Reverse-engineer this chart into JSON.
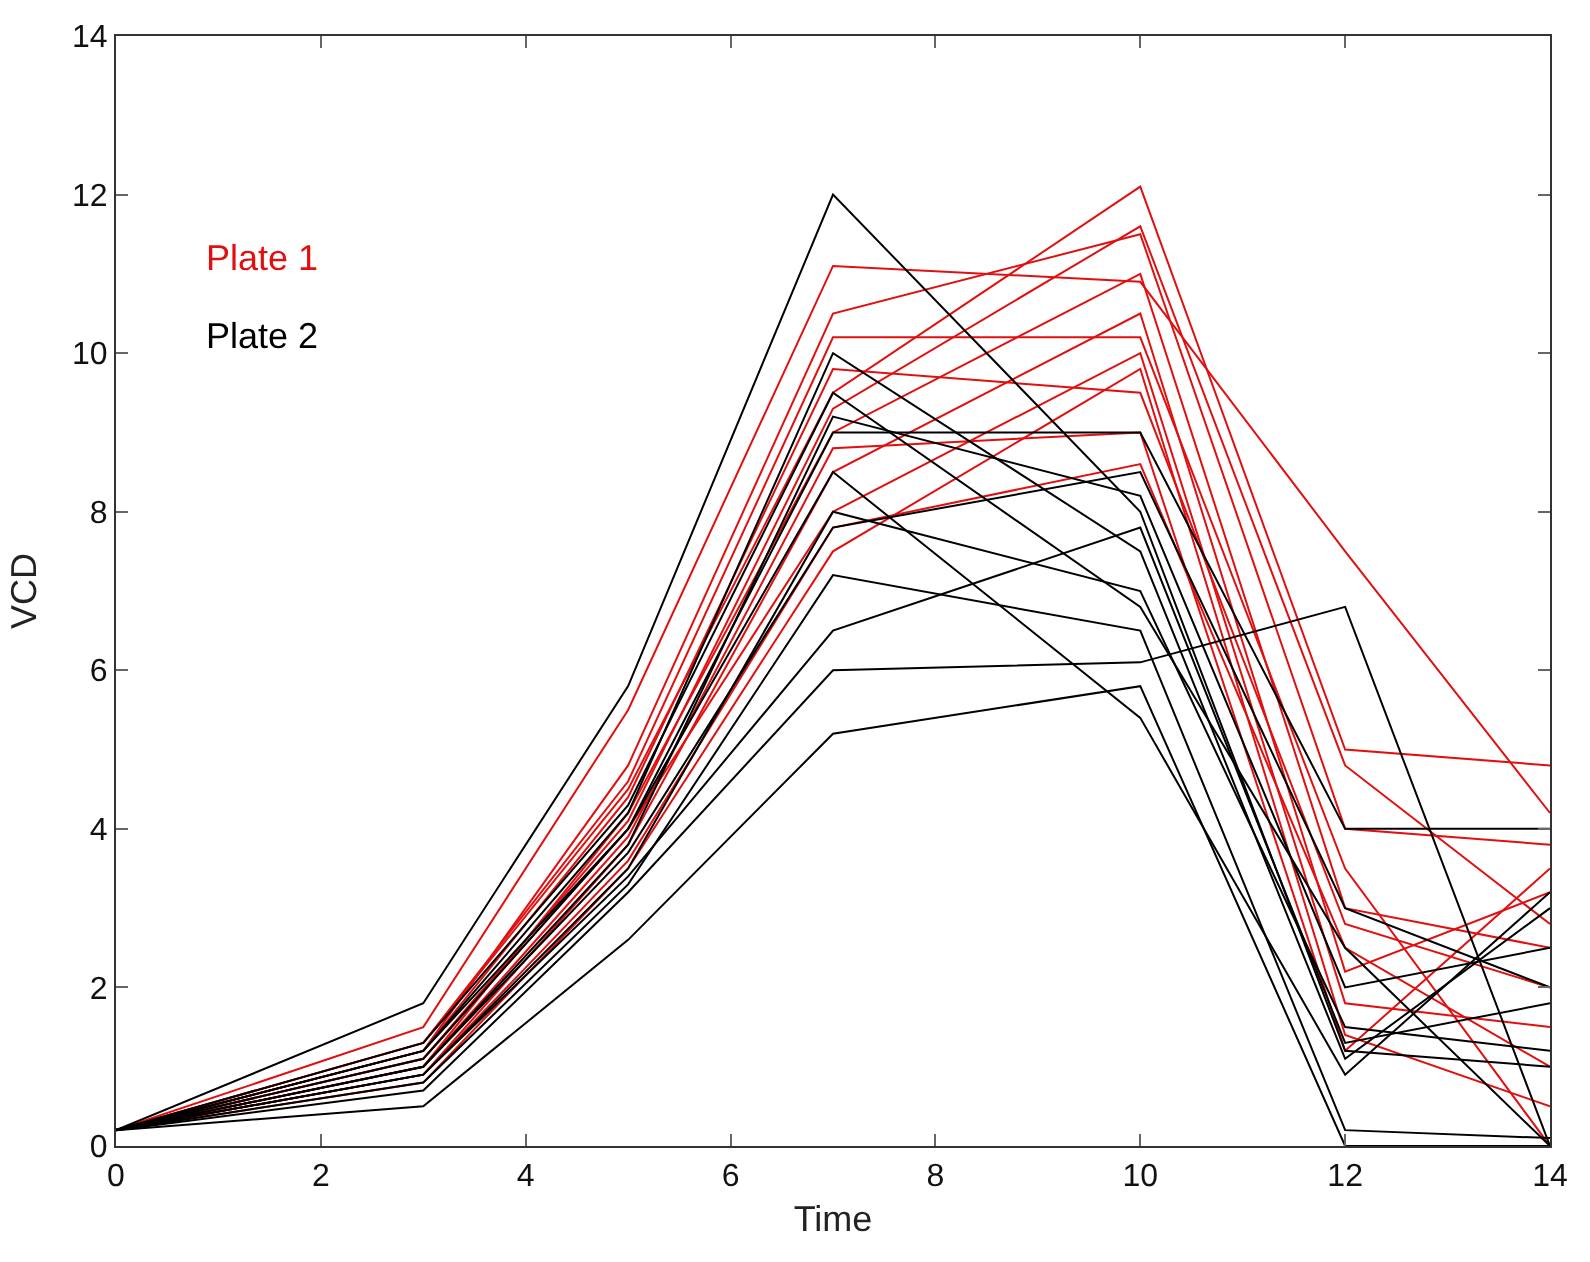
{
  "chart_data": {
    "type": "line",
    "xlabel": "Time",
    "ylabel": "VCD",
    "x": [
      0,
      3,
      5,
      7,
      10,
      12,
      14
    ],
    "xlim": [
      0,
      14
    ],
    "xticks": [
      0,
      2,
      4,
      6,
      8,
      10,
      12,
      14
    ],
    "ylim": [
      0,
      14
    ],
    "yticks": [
      0,
      2,
      4,
      6,
      8,
      10,
      12,
      14
    ],
    "grid": false,
    "legend": "top left",
    "marker": "none",
    "line_style": "solid",
    "series": [
      {
        "name": "Plate 1",
        "color": "#e01010",
        "values": [
          0.2,
          1.3,
          4.5,
          9.5,
          12.1,
          5.0,
          4.8
        ]
      },
      {
        "color": "#e01010",
        "values": [
          0.2,
          1.5,
          5.5,
          11.1,
          10.9,
          7.5,
          4.2
        ]
      },
      {
        "color": "#e01010",
        "values": [
          0.2,
          1.2,
          4.8,
          10.5,
          11.5,
          4.0,
          3.8
        ]
      },
      {
        "color": "#e01010",
        "values": [
          0.2,
          1.0,
          4.2,
          9.0,
          11.0,
          3.0,
          2.5
        ]
      },
      {
        "color": "#e01010",
        "values": [
          0.2,
          0.9,
          3.8,
          8.5,
          10.5,
          2.2,
          3.2
        ]
      },
      {
        "color": "#e01010",
        "values": [
          0.2,
          1.1,
          4.0,
          8.0,
          10.0,
          1.8,
          1.5
        ]
      },
      {
        "color": "#e01010",
        "values": [
          0.2,
          1.2,
          4.4,
          9.8,
          9.5,
          2.8,
          2.0
        ]
      },
      {
        "color": "#e01010",
        "values": [
          0.2,
          0.8,
          3.5,
          7.5,
          9.8,
          1.4,
          0.5
        ]
      },
      {
        "color": "#e01010",
        "values": [
          0.2,
          1.0,
          3.9,
          8.8,
          9.0,
          1.2,
          3.5
        ]
      },
      {
        "color": "#e01010",
        "values": [
          0.2,
          1.3,
          4.6,
          10.2,
          10.2,
          3.5,
          0.0
        ]
      },
      {
        "color": "#e01010",
        "values": [
          0.2,
          0.9,
          3.6,
          7.8,
          8.6,
          2.5,
          1.0
        ]
      },
      {
        "color": "#e01010",
        "values": [
          0.2,
          1.1,
          4.1,
          9.3,
          11.6,
          4.8,
          2.8
        ]
      },
      {
        "name": "Plate 2",
        "color": "#000000",
        "values": [
          0.2,
          1.8,
          5.8,
          12.0,
          8.0,
          1.2,
          1.0
        ]
      },
      {
        "color": "#000000",
        "values": [
          0.2,
          0.5,
          2.6,
          5.2,
          5.8,
          0.0,
          0.0
        ]
      },
      {
        "color": "#000000",
        "values": [
          0.2,
          0.7,
          3.2,
          6.0,
          6.1,
          6.8,
          0.0
        ]
      },
      {
        "color": "#000000",
        "values": [
          0.2,
          1.0,
          3.8,
          9.2,
          8.2,
          2.0,
          2.5
        ]
      },
      {
        "color": "#000000",
        "values": [
          0.2,
          1.2,
          4.2,
          10.0,
          7.5,
          1.1,
          3.0
        ]
      },
      {
        "color": "#000000",
        "values": [
          0.2,
          0.9,
          3.5,
          8.0,
          7.0,
          1.5,
          1.2
        ]
      },
      {
        "color": "#000000",
        "values": [
          0.2,
          1.1,
          4.0,
          9.0,
          9.0,
          4.0,
          4.0
        ]
      },
      {
        "color": "#000000",
        "values": [
          0.2,
          0.8,
          3.3,
          7.2,
          6.5,
          0.2,
          0.1
        ]
      },
      {
        "color": "#000000",
        "values": [
          0.2,
          1.0,
          3.7,
          7.8,
          8.5,
          3.0,
          2.0
        ]
      },
      {
        "color": "#000000",
        "values": [
          0.2,
          1.3,
          4.3,
          9.5,
          6.8,
          2.5,
          0.0
        ]
      },
      {
        "color": "#000000",
        "values": [
          0.2,
          0.9,
          3.4,
          6.5,
          7.8,
          1.3,
          1.8
        ]
      },
      {
        "color": "#000000",
        "values": [
          0.2,
          1.2,
          4.0,
          8.5,
          5.4,
          0.9,
          3.2
        ]
      }
    ]
  }
}
